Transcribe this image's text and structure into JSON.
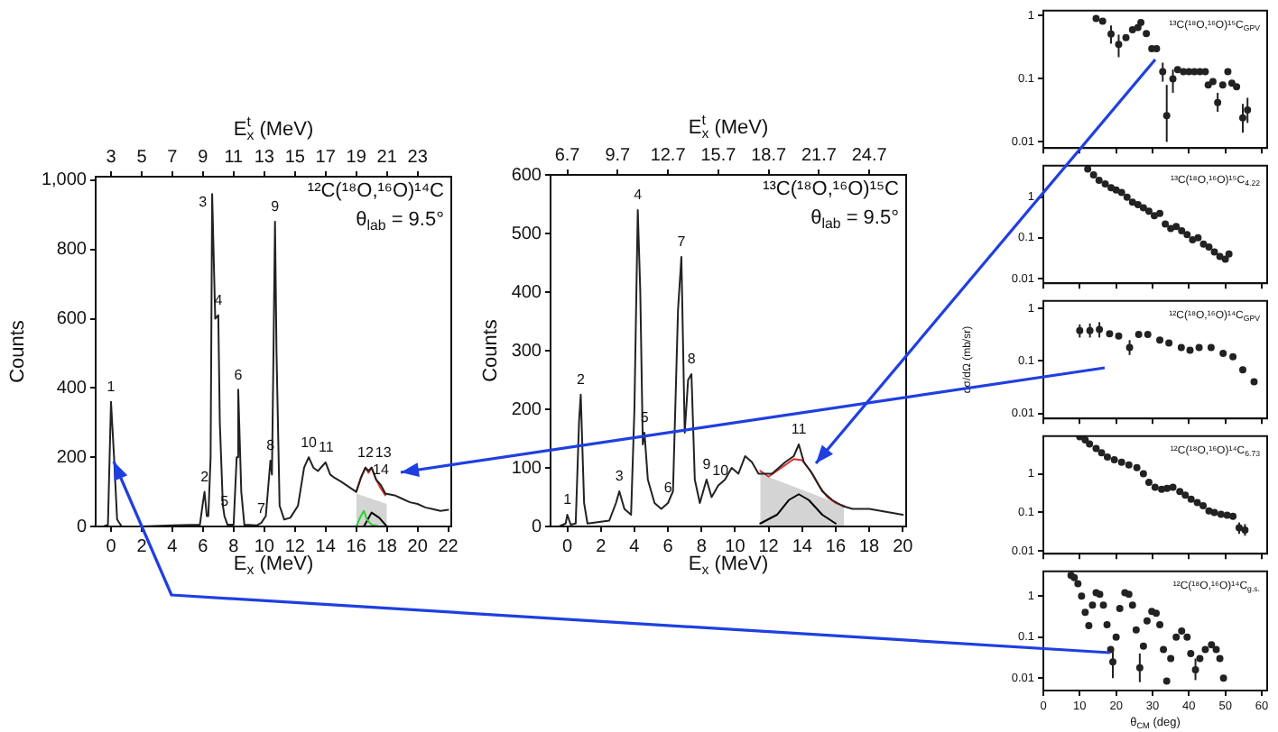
{
  "chart_data": [
    {
      "type": "line",
      "xlabel": "E$_{x}$ (MeV)",
      "x2label": "E$^{t}$$_{x}$ (MeV)",
      "ylabel": "Counts",
      "xlim": [
        -1,
        22.2
      ],
      "xticks": [
        0,
        2,
        4,
        6,
        8,
        10,
        12,
        14,
        16,
        18,
        20,
        22
      ],
      "x2lim": [
        2,
        25.2
      ],
      "x2ticks": [
        3,
        5,
        7,
        9,
        11,
        13,
        15,
        17,
        19,
        21,
        23
      ],
      "ylim": [
        0,
        1010
      ],
      "yticks": [
        0,
        200,
        400,
        600,
        800,
        {
          "value": 1000,
          "label": "1,000"
        }
      ],
      "series": [
        {
          "type": "area",
          "color": "#d4d4d4",
          "x": [
            16,
            18
          ],
          "values": [
            95,
            65
          ]
        },
        {
          "color": "#222222",
          "x": [
            -0.5,
            -0.2,
            0,
            0.2,
            0.4,
            0.7,
            2,
            4,
            5.8,
            6.0,
            6.1,
            6.25,
            6.35,
            6.5,
            6.6,
            6.8,
            7.0,
            7.1,
            7.3,
            7.4,
            7.6,
            8.0,
            8.2,
            8.3,
            8.5,
            8.7,
            9.5,
            9.8,
            10.1,
            10.4,
            10.5,
            10.6,
            10.7,
            10.8,
            11.0,
            11.3,
            11.7,
            12.2,
            12.6,
            12.9,
            13.2,
            13.5,
            13.8,
            14.0,
            14.3,
            14.6,
            15,
            15.5,
            16,
            16.3,
            16.6,
            16.8,
            17.0,
            17.3,
            17.6,
            17.9,
            18.5,
            19,
            19.5,
            20,
            20.5,
            21,
            21.5,
            22
          ],
          "values": [
            0,
            5,
            360,
            200,
            20,
            0,
            0,
            3,
            5,
            70,
            100,
            30,
            30,
            200,
            960,
            600,
            610,
            300,
            60,
            30,
            5,
            5,
            200,
            395,
            100,
            5,
            3,
            10,
            30,
            190,
            150,
            500,
            880,
            500,
            60,
            20,
            25,
            60,
            170,
            200,
            170,
            160,
            175,
            185,
            150,
            140,
            130,
            115,
            100,
            140,
            170,
            160,
            170,
            135,
            120,
            95,
            90,
            80,
            70,
            65,
            55,
            50,
            45,
            48
          ]
        },
        {
          "color": "#e03030",
          "x": [
            16,
            16.3,
            16.6,
            16.8,
            17.0,
            17.3,
            17.6,
            17.9
          ],
          "values": [
            100,
            140,
            170,
            155,
            170,
            135,
            110,
            90
          ]
        },
        {
          "color": "#33cc33",
          "x": [
            16,
            16.3,
            16.5,
            16.7,
            17,
            17.5
          ],
          "values": [
            0,
            30,
            45,
            20,
            5,
            0
          ]
        },
        {
          "color": "#000000",
          "x": [
            16.5,
            17,
            17.5,
            18
          ],
          "values": [
            0,
            40,
            25,
            0
          ]
        }
      ],
      "annotations": [
        "¹²C(¹⁸O,¹⁶O)¹⁴C",
        "θ$_{lab}$ = 9.5°",
        {
          "text": "1",
          "x": 0,
          "y": 360
        },
        {
          "text": "2",
          "x": 6.1,
          "y": 100
        },
        {
          "text": "3",
          "x": 6.6,
          "y": 960
        },
        {
          "text": "4",
          "x": 7.0,
          "y": 610
        },
        {
          "text": "5",
          "x": 7.4,
          "y": 30
        },
        {
          "text": "6",
          "x": 8.3,
          "y": 395
        },
        {
          "text": "7",
          "x": 9.8,
          "y": 10
        },
        {
          "text": "8",
          "x": 10.4,
          "y": 190
        },
        {
          "text": "9",
          "x": 10.7,
          "y": 880
        },
        {
          "text": "10",
          "x": 12.9,
          "y": 200
        },
        {
          "text": "11",
          "x": 14,
          "y": 185
        },
        {
          "text": "12",
          "x": 16.6,
          "y": 170
        },
        {
          "text": "13",
          "x": 17.0,
          "y": 170
        },
        {
          "text": "14",
          "x": 17.6,
          "y": 120
        }
      ]
    },
    {
      "type": "line",
      "xlabel": "E$_{x}$ (MeV)",
      "x2label": "E$^{t}$$_{x}$ (MeV)",
      "ylabel": "Counts",
      "xlim": [
        -1,
        20.2
      ],
      "xticks": [
        0,
        2,
        4,
        6,
        8,
        10,
        12,
        14,
        16,
        18,
        20
      ],
      "x2lim": [
        5.7,
        26.9
      ],
      "x2ticks": [
        6.7,
        9.7,
        12.7,
        15.7,
        18.7,
        21.7,
        24.7
      ],
      "ylim": [
        0,
        600
      ],
      "yticks": [
        0,
        100,
        200,
        300,
        400,
        500,
        600
      ],
      "series": [
        {
          "type": "area",
          "color": "#d4d4d4",
          "x": [
            11.5,
            16.5
          ],
          "values": [
            90,
            35
          ]
        },
        {
          "color": "#222222",
          "x": [
            -0.5,
            -0.1,
            0,
            0.2,
            0.5,
            0.7,
            0.8,
            1,
            1.2,
            2.5,
            2.9,
            3.1,
            3.4,
            3.8,
            4.0,
            4.2,
            4.35,
            4.5,
            4.6,
            4.8,
            5.2,
            5.6,
            6.0,
            6.3,
            6.6,
            6.8,
            7.0,
            7.2,
            7.4,
            7.6,
            7.9,
            8.3,
            8.6,
            9.0,
            9.4,
            9.8,
            10.2,
            10.6,
            11.0,
            11.4,
            11.8,
            12.2,
            12.6,
            13.0,
            13.5,
            13.8,
            14.1,
            14.6,
            15.2,
            15.8,
            16.4,
            17,
            18,
            19,
            20
          ],
          "values": [
            0,
            5,
            20,
            3,
            5,
            180,
            225,
            40,
            5,
            10,
            40,
            60,
            30,
            20,
            200,
            540,
            400,
            140,
            160,
            80,
            40,
            30,
            40,
            60,
            370,
            460,
            160,
            250,
            260,
            80,
            40,
            80,
            50,
            70,
            80,
            100,
            90,
            120,
            110,
            90,
            90,
            90,
            100,
            110,
            120,
            140,
            110,
            90,
            60,
            45,
            35,
            30,
            30,
            25,
            20
          ]
        },
        {
          "color": "#e03030",
          "x": [
            11.5,
            12,
            12.5,
            13,
            13.5,
            14,
            14.5,
            15,
            15.5,
            16,
            16.5
          ],
          "values": [
            95,
            85,
            95,
            105,
            115,
            113,
            95,
            70,
            50,
            40,
            35
          ]
        },
        {
          "color": "#000000",
          "x": [
            11.5,
            12.5,
            13.2,
            13.8,
            14.4,
            15.2,
            16
          ],
          "values": [
            5,
            20,
            45,
            55,
            45,
            20,
            5
          ]
        }
      ],
      "annotations": [
        "¹³C(¹⁸O,¹⁶O)¹⁵C",
        "θ$_{lab}$ = 9.5°",
        {
          "text": "1",
          "x": 0,
          "y": 20
        },
        {
          "text": "2",
          "x": 0.8,
          "y": 225
        },
        {
          "text": "3",
          "x": 3.1,
          "y": 60
        },
        {
          "text": "4",
          "x": 4.2,
          "y": 540
        },
        {
          "text": "5",
          "x": 4.6,
          "y": 160
        },
        {
          "text": "6",
          "x": 6.0,
          "y": 40
        },
        {
          "text": "7",
          "x": 6.8,
          "y": 460
        },
        {
          "text": "8",
          "x": 7.4,
          "y": 260
        },
        {
          "text": "9",
          "x": 8.3,
          "y": 80
        },
        {
          "text": "10",
          "x": 9.0,
          "y": 70
        },
        {
          "text": "11",
          "x": 13.8,
          "y": 140
        }
      ]
    },
    {
      "type": "scatter",
      "marker": "circle",
      "log": "y",
      "color": "#222222",
      "xlim": [
        0,
        61.5
      ],
      "xticks": [
        0,
        10,
        20,
        30,
        40,
        50,
        60
      ],
      "ylim": [
        0.008,
        1.2
      ],
      "yticks": [
        0.01,
        0.1,
        1
      ],
      "tick_labels": "y",
      "annotations": [
        "¹³C(¹⁸O,¹⁶O)¹⁵C$_{GPV}$"
      ],
      "x": [
        14.5,
        16.3,
        18.6,
        20.7,
        22.7,
        24.5,
        26,
        26.8,
        28.3,
        29.8,
        31.1,
        32.8,
        33.9,
        35.6,
        36.9,
        38.5,
        40,
        41.5,
        43,
        44.5,
        45.3,
        46.6,
        47.9,
        49.3,
        50.7,
        51.8,
        53.1,
        54.8,
        56.1
      ],
      "values": [
        0.9,
        0.82,
        0.51,
        0.35,
        0.45,
        0.6,
        0.65,
        0.78,
        0.52,
        0.3,
        0.3,
        0.13,
        0.026,
        0.1,
        0.14,
        0.13,
        0.13,
        0.13,
        0.13,
        0.13,
        0.08,
        0.09,
        0.042,
        0.08,
        0.13,
        0.085,
        0.075,
        0.024,
        0.032
      ],
      "errors": [
        null,
        null,
        [
          0.36,
          0.7
        ],
        [
          0.22,
          0.5
        ],
        null,
        null,
        null,
        null,
        null,
        null,
        null,
        [
          0.09,
          0.18
        ],
        [
          0.01,
          0.08
        ],
        [
          0.06,
          0.14
        ],
        null,
        null,
        null,
        null,
        null,
        null,
        null,
        null,
        [
          0.03,
          0.06
        ],
        null,
        null,
        null,
        null,
        [
          0.014,
          0.04
        ],
        [
          0.02,
          0.05
        ]
      ]
    },
    {
      "type": "scatter",
      "marker": "circle",
      "log": "y",
      "color": "#222222",
      "xlim": [
        0,
        61.5
      ],
      "xticks": [
        0,
        10,
        20,
        30,
        40,
        50,
        60
      ],
      "ylim": [
        0.0077,
        5.9
      ],
      "yticks": [
        0.01,
        0.1,
        1
      ],
      "tick_labels": "y",
      "annotations": [
        "¹³C(¹⁸O,¹⁶O)¹⁵C$_{4.22}$"
      ],
      "x": [
        12.2,
        13.8,
        15.3,
        17,
        18.6,
        20,
        21.5,
        23,
        24.5,
        26,
        27.5,
        29,
        30.5,
        32,
        33.5,
        35,
        36.5,
        38,
        39.5,
        41,
        42.5,
        44,
        45.5,
        47,
        48.5,
        50,
        51
      ],
      "values": [
        4.9,
        3.5,
        2.6,
        2.1,
        1.7,
        1.5,
        1.3,
        1.0,
        0.75,
        0.65,
        0.55,
        0.45,
        0.35,
        0.4,
        0.22,
        0.17,
        0.19,
        0.15,
        0.12,
        0.09,
        0.1,
        0.07,
        0.06,
        0.045,
        0.035,
        0.03,
        0.04
      ]
    },
    {
      "type": "scatter",
      "marker": "circle",
      "log": "y",
      "color": "#222222",
      "ylabel": "dσ/dΩ (mb/sr)",
      "xlim": [
        0,
        61.5
      ],
      "xticks": [
        0,
        10,
        20,
        30,
        40,
        50,
        60
      ],
      "ylim": [
        0.008,
        1.4
      ],
      "yticks": [
        0.01,
        0.1,
        1
      ],
      "tick_labels": "y",
      "annotations": [
        "¹²C(¹⁸O,¹⁶O)¹⁴C$_{GPV}$"
      ],
      "x": [
        10,
        12.8,
        15.4,
        18.2,
        20.7,
        23.7,
        26.2,
        28.7,
        32,
        34.5,
        37.9,
        40.3,
        42.8,
        46.1,
        49.4,
        52.1,
        54.8,
        57.9
      ],
      "values": [
        0.38,
        0.38,
        0.4,
        0.33,
        0.3,
        0.18,
        0.32,
        0.32,
        0.25,
        0.22,
        0.18,
        0.16,
        0.18,
        0.18,
        0.14,
        0.12,
        0.068,
        0.04
      ],
      "errors": [
        [
          0.28,
          0.5
        ],
        [
          0.28,
          0.52
        ],
        [
          0.28,
          0.55
        ],
        null,
        null,
        [
          0.13,
          0.25
        ],
        null,
        null,
        null,
        null,
        null,
        null,
        null,
        null,
        null,
        null,
        null,
        null
      ]
    },
    {
      "type": "scatter",
      "marker": "circle",
      "log": "y",
      "color": "#222222",
      "xlim": [
        0,
        61.5
      ],
      "xticks": [
        0,
        10,
        20,
        30,
        40,
        50,
        60
      ],
      "ylim": [
        0.0086,
        9.4
      ],
      "yticks": [
        0.01,
        0.1,
        1
      ],
      "tick_labels": "y",
      "annotations": [
        "¹²C(¹⁸O,¹⁶O)¹⁴C$_{6.73}$"
      ],
      "x": [
        10,
        11.5,
        12.7,
        14.5,
        16,
        17.6,
        19.5,
        21.5,
        23.5,
        25.7,
        27.5,
        29,
        30.7,
        32.5,
        34,
        35.6,
        37.5,
        39,
        40.6,
        42.3,
        43.9,
        45.5,
        47,
        48.8,
        50.5,
        52.1,
        53.8,
        55.4
      ],
      "values": [
        9,
        7.5,
        5.9,
        4.5,
        3.5,
        2.7,
        2.3,
        2,
        1.7,
        1.45,
        1,
        0.6,
        0.45,
        0.4,
        0.42,
        0.45,
        0.35,
        0.28,
        0.22,
        0.18,
        0.15,
        0.11,
        0.1,
        0.09,
        0.085,
        0.08,
        0.04,
        0.035
      ],
      "errors": [
        null,
        null,
        null,
        null,
        null,
        null,
        null,
        null,
        null,
        null,
        null,
        null,
        null,
        null,
        null,
        null,
        null,
        null,
        null,
        null,
        null,
        null,
        null,
        null,
        null,
        null,
        [
          0.028,
          0.055
        ],
        [
          0.025,
          0.05
        ]
      ]
    },
    {
      "type": "scatter",
      "marker": "circle",
      "log": "y",
      "color": "#222222",
      "xlabel": "θ$_{CM}$ (deg)",
      "xlim": [
        0,
        61.5
      ],
      "xticks": [
        0,
        10,
        20,
        30,
        40,
        50,
        60
      ],
      "ylim": [
        0.005,
        4
      ],
      "yticks": [
        0.01,
        0.1,
        1
      ],
      "annotations": [
        "¹²C(¹⁸O,¹⁶O)¹⁴C$_{g.s.}$"
      ],
      "x": [
        7.6,
        8.5,
        9.5,
        10.5,
        11.5,
        12.5,
        13.5,
        14.5,
        15.5,
        16.5,
        17.5,
        18.5,
        19.1,
        20,
        21,
        22.4,
        23.5,
        24.5,
        25.5,
        26.5,
        27.5,
        28.5,
        29.8,
        31,
        32,
        33,
        33.9,
        35,
        36.5,
        38,
        39.5,
        40.5,
        41.8,
        43,
        44.5,
        46.2,
        47.5,
        48.5,
        49.5
      ],
      "values": [
        3.2,
        2.8,
        2,
        1,
        0.4,
        0.19,
        0.6,
        1.2,
        1.1,
        0.6,
        0.2,
        0.05,
        0.025,
        0.1,
        0.5,
        1.2,
        1.1,
        0.6,
        0.15,
        0.018,
        0.06,
        0.25,
        0.42,
        0.38,
        0.2,
        0.05,
        0.0085,
        0.03,
        0.1,
        0.14,
        0.1,
        0.04,
        0.016,
        0.03,
        0.05,
        0.065,
        0.05,
        0.03,
        0.01
      ],
      "errors": [
        null,
        null,
        null,
        null,
        null,
        null,
        null,
        null,
        null,
        null,
        null,
        null,
        [
          0.01,
          0.05
        ],
        null,
        null,
        null,
        null,
        null,
        null,
        [
          0.008,
          0.04
        ],
        null,
        null,
        null,
        null,
        null,
        null,
        null,
        null,
        null,
        null,
        null,
        null,
        [
          0.009,
          0.03
        ],
        null,
        null,
        null,
        null,
        null,
        null
      ]
    }
  ]
}
